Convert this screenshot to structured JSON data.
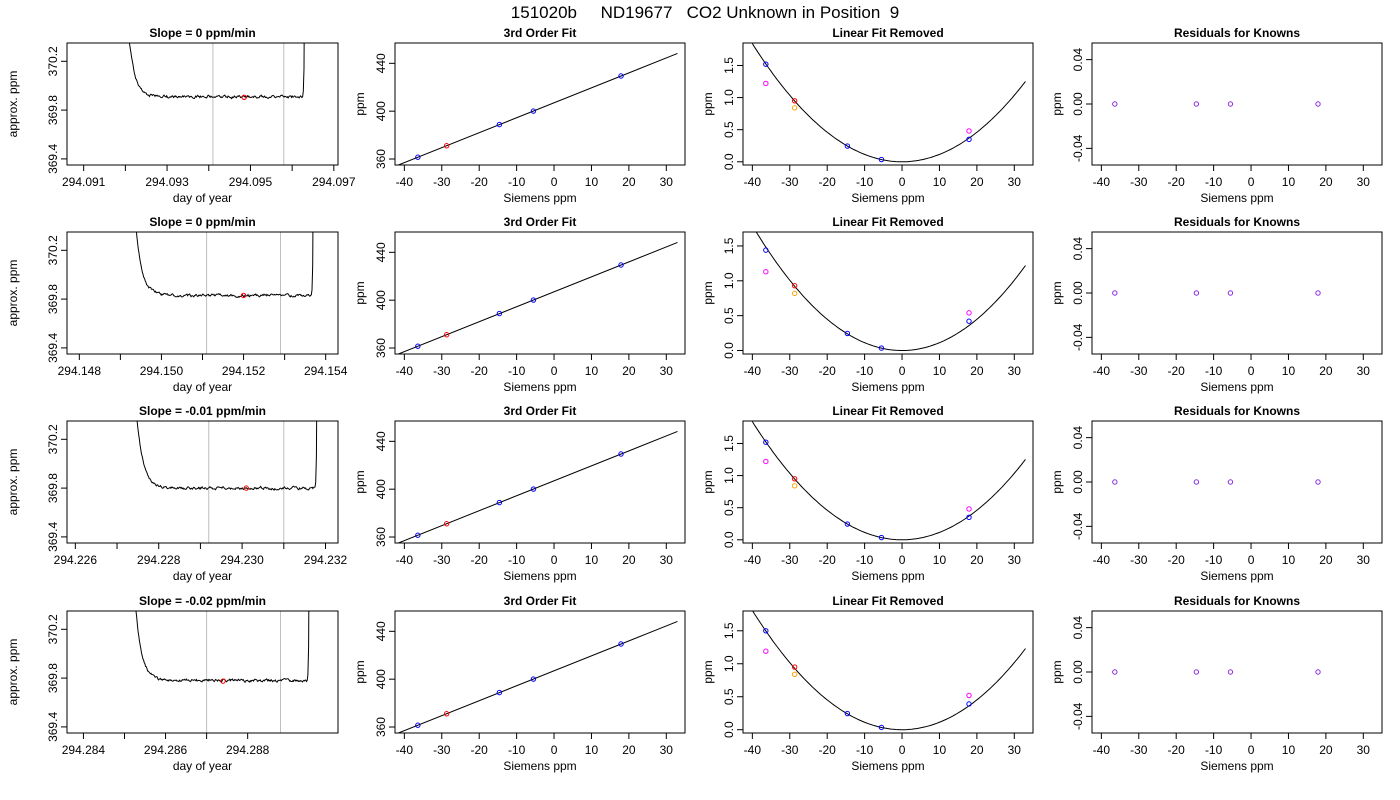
{
  "figure": {
    "title": "151020b     ND19677   CO2 Unknown in Position  9"
  },
  "colors": {
    "trace": "#000000",
    "window": "#bebebe",
    "mean_point": "#ff0000",
    "known": "#0000ff",
    "unknown_fit": "#ff0000",
    "unknown_linear": "#ffa500",
    "linear": "#ff00ff",
    "residual": "#8a2be2"
  },
  "chart_data": [
    {
      "type": "line",
      "row": 0,
      "col": 0,
      "title": "Slope =  0  ppm/min",
      "xlabel": "day of year",
      "ylabel": "approx. ppm",
      "xlim": [
        294.0906,
        294.0971
      ],
      "ylim": [
        369.35,
        370.35
      ],
      "xticks": [
        294.091,
        294.093,
        294.095,
        294.097
      ],
      "xtick_labels": [
        "294.091",
        "294.093",
        "294.095",
        "294.097"
      ],
      "yticks": [
        369.4,
        369.8,
        370.2
      ],
      "ytick_labels": [
        "369.4",
        "369.8",
        "370.2"
      ],
      "trace": {
        "x_start": 294.092,
        "x_end": 294.0963,
        "baseline": 369.91,
        "rise_start": 370.45,
        "rise_end": 370.45,
        "decay_minutes": 0.025,
        "noise": 0.012,
        "seed": 1
      },
      "windows": [
        294.0941,
        294.0958
      ],
      "mean_point": {
        "x": 294.09485,
        "y": 369.905
      }
    },
    {
      "type": "line",
      "row": 1,
      "col": 0,
      "title": "Slope =  0  ppm/min",
      "xlabel": "day of year",
      "ylabel": "approx. ppm",
      "xlim": [
        294.1477,
        294.1543
      ],
      "ylim": [
        369.35,
        370.35
      ],
      "xticks": [
        294.148,
        294.15,
        294.152,
        294.154
      ],
      "xtick_labels": [
        "294.148",
        "294.150",
        "294.152",
        "294.154"
      ],
      "yticks": [
        369.4,
        369.8,
        370.2
      ],
      "ytick_labels": [
        "369.4",
        "369.8",
        "370.2"
      ],
      "trace": {
        "x_start": 294.1493,
        "x_end": 294.1537,
        "baseline": 369.83,
        "rise_start": 370.45,
        "rise_end": 370.45,
        "decay_minutes": 0.025,
        "noise": 0.012,
        "seed": 2
      },
      "windows": [
        294.1511,
        294.1529
      ],
      "mean_point": {
        "x": 294.152,
        "y": 369.83
      }
    },
    {
      "type": "line",
      "row": 2,
      "col": 0,
      "title": "Slope =  -0.01  ppm/min",
      "xlabel": "day of year",
      "ylabel": "approx. ppm",
      "xlim": [
        294.2258,
        294.2323
      ],
      "ylim": [
        369.35,
        370.35
      ],
      "xticks": [
        294.226,
        294.228,
        294.23,
        294.232
      ],
      "xtick_labels": [
        "294.226",
        "294.228",
        "294.230",
        "294.232"
      ],
      "yticks": [
        369.4,
        369.8,
        370.2
      ],
      "ytick_labels": [
        "369.4",
        "369.8",
        "370.2"
      ],
      "trace": {
        "x_start": 294.2274,
        "x_end": 294.2318,
        "baseline": 369.8,
        "rise_start": 370.45,
        "rise_end": 370.45,
        "decay_minutes": 0.025,
        "noise": 0.012,
        "seed": 3
      },
      "windows": [
        294.2292,
        294.231
      ],
      "mean_point": {
        "x": 294.2301,
        "y": 369.8
      }
    },
    {
      "type": "line",
      "row": 3,
      "col": 0,
      "title": "Slope =  -0.02  ppm/min",
      "xlabel": "day of year",
      "ylabel": "approx. ppm",
      "xlim": [
        294.2836,
        294.2902
      ],
      "ylim": [
        369.35,
        370.35
      ],
      "xticks": [
        294.284,
        294.286,
        294.288
      ],
      "xtick_labels": [
        "294.284",
        "294.286",
        "294.288"
      ],
      "yticks": [
        369.4,
        369.8,
        370.2
      ],
      "ytick_labels": [
        "369.4",
        "369.8",
        "370.2"
      ],
      "trace": {
        "x_start": 294.2852,
        "x_end": 294.2895,
        "baseline": 369.78,
        "rise_start": 370.45,
        "rise_end": 370.45,
        "decay_minutes": 0.025,
        "noise": 0.012,
        "seed": 4
      },
      "windows": [
        294.287,
        294.2888
      ],
      "mean_point": {
        "x": 294.2874,
        "y": 369.775
      }
    },
    {
      "type": "scatter",
      "row": 0,
      "col": 1,
      "title": "3rd Order Fit",
      "xlabel": "Siemens ppm",
      "ylabel": "ppm",
      "xlim": [
        -42.5,
        35
      ],
      "ylim": [
        355,
        457
      ],
      "xticks": [
        -40,
        -30,
        -20,
        -10,
        0,
        10,
        20,
        30
      ],
      "yticks": [
        360,
        400,
        440
      ],
      "fit_line": {
        "slope": 1.25,
        "intercept": 407.0,
        "x_range": [
          -42,
          33
        ]
      },
      "known_points": [
        {
          "x": -36.4,
          "y": 361.5
        },
        {
          "x": -14.6,
          "y": 388.8
        },
        {
          "x": -5.5,
          "y": 400.1
        },
        {
          "x": 17.9,
          "y": 429.4
        }
      ],
      "unknown_point": {
        "x": -28.7,
        "y": 371.1
      }
    },
    {
      "type": "scatter",
      "row": 1,
      "col": 1,
      "title": "3rd Order Fit",
      "xlabel": "Siemens ppm",
      "ylabel": "ppm",
      "xlim": [
        -42.5,
        35
      ],
      "ylim": [
        355,
        457
      ],
      "xticks": [
        -40,
        -30,
        -20,
        -10,
        0,
        10,
        20,
        30
      ],
      "yticks": [
        360,
        400,
        440
      ],
      "fit_line": {
        "slope": 1.25,
        "intercept": 407.0,
        "x_range": [
          -42,
          33
        ]
      },
      "known_points": [
        {
          "x": -36.4,
          "y": 361.5
        },
        {
          "x": -14.6,
          "y": 388.8
        },
        {
          "x": -5.5,
          "y": 400.1
        },
        {
          "x": 17.9,
          "y": 429.4
        }
      ],
      "unknown_point": {
        "x": -28.7,
        "y": 371.1
      }
    },
    {
      "type": "scatter",
      "row": 2,
      "col": 1,
      "title": "3rd Order Fit",
      "xlabel": "Siemens ppm",
      "ylabel": "ppm",
      "xlim": [
        -42.5,
        35
      ],
      "ylim": [
        355,
        457
      ],
      "xticks": [
        -40,
        -30,
        -20,
        -10,
        0,
        10,
        20,
        30
      ],
      "yticks": [
        360,
        400,
        440
      ],
      "fit_line": {
        "slope": 1.25,
        "intercept": 407.0,
        "x_range": [
          -42,
          33
        ]
      },
      "known_points": [
        {
          "x": -36.4,
          "y": 361.5
        },
        {
          "x": -14.6,
          "y": 388.8
        },
        {
          "x": -5.5,
          "y": 400.1
        },
        {
          "x": 17.9,
          "y": 429.4
        }
      ],
      "unknown_point": {
        "x": -28.7,
        "y": 371.1
      }
    },
    {
      "type": "scatter",
      "row": 3,
      "col": 1,
      "title": "3rd Order Fit",
      "xlabel": "Siemens ppm",
      "ylabel": "ppm",
      "xlim": [
        -42.5,
        35
      ],
      "ylim": [
        355,
        457
      ],
      "xticks": [
        -40,
        -30,
        -20,
        -10,
        0,
        10,
        20,
        30
      ],
      "yticks": [
        360,
        400,
        440
      ],
      "fit_line": {
        "slope": 1.25,
        "intercept": 407.0,
        "x_range": [
          -42,
          33
        ]
      },
      "known_points": [
        {
          "x": -36.4,
          "y": 361.5
        },
        {
          "x": -14.6,
          "y": 388.8
        },
        {
          "x": -5.5,
          "y": 400.1
        },
        {
          "x": 17.9,
          "y": 429.4
        }
      ],
      "unknown_point": {
        "x": -28.7,
        "y": 371.1
      }
    },
    {
      "type": "scatter",
      "row": 0,
      "col": 2,
      "title": "Linear Fit Removed",
      "xlabel": "Siemens ppm",
      "ylabel": "ppm",
      "xlim": [
        -42.5,
        35
      ],
      "ylim": [
        -0.05,
        1.85
      ],
      "xticks": [
        -40,
        -30,
        -20,
        -10,
        0,
        10,
        20,
        30
      ],
      "yticks": [
        0.0,
        0.5,
        1.0,
        1.5
      ],
      "ytick_labels": [
        "0.0",
        "0.5",
        "1.0",
        "1.5"
      ],
      "curve": {
        "a": 0.00115,
        "b": 0,
        "c": 0,
        "x_range": [
          -40,
          33
        ]
      },
      "known_points": [
        {
          "x": -36.4,
          "y": 1.52
        },
        {
          "x": -14.6,
          "y": 0.245
        },
        {
          "x": -5.5,
          "y": 0.035
        },
        {
          "x": 17.9,
          "y": 0.35
        }
      ],
      "linear_points": [
        {
          "x": -36.4,
          "y": 1.22
        },
        {
          "x": 17.9,
          "y": 0.48
        }
      ],
      "unknown_fit_point": {
        "x": -28.7,
        "y": 0.95
      },
      "unknown_linear_point": {
        "x": -28.7,
        "y": 0.84
      }
    },
    {
      "type": "scatter",
      "row": 1,
      "col": 2,
      "title": "Linear Fit Removed",
      "xlabel": "Siemens ppm",
      "ylabel": "ppm",
      "xlim": [
        -42.5,
        35
      ],
      "ylim": [
        -0.05,
        1.7
      ],
      "xticks": [
        -40,
        -30,
        -20,
        -10,
        0,
        10,
        20,
        30
      ],
      "yticks": [
        0.0,
        0.5,
        1.0,
        1.5
      ],
      "ytick_labels": [
        "0.0",
        "0.5",
        "1.0",
        "1.5"
      ],
      "curve": {
        "a": 0.00112,
        "b": 0,
        "c": 0,
        "x_range": [
          -40,
          33
        ]
      },
      "known_points": [
        {
          "x": -36.4,
          "y": 1.44
        },
        {
          "x": -14.6,
          "y": 0.245
        },
        {
          "x": -5.5,
          "y": 0.035
        },
        {
          "x": 17.9,
          "y": 0.42
        }
      ],
      "linear_points": [
        {
          "x": -36.4,
          "y": 1.13
        },
        {
          "x": 17.9,
          "y": 0.54
        }
      ],
      "unknown_fit_point": {
        "x": -28.7,
        "y": 0.93
      },
      "unknown_linear_point": {
        "x": -28.7,
        "y": 0.82
      }
    },
    {
      "type": "scatter",
      "row": 2,
      "col": 2,
      "title": "Linear Fit Removed",
      "xlabel": "Siemens ppm",
      "ylabel": "ppm",
      "xlim": [
        -42.5,
        35
      ],
      "ylim": [
        -0.05,
        1.85
      ],
      "xticks": [
        -40,
        -30,
        -20,
        -10,
        0,
        10,
        20,
        30
      ],
      "yticks": [
        0.0,
        0.5,
        1.0,
        1.5
      ],
      "ytick_labels": [
        "0.0",
        "0.5",
        "1.0",
        "1.5"
      ],
      "curve": {
        "a": 0.00115,
        "b": 0,
        "c": 0,
        "x_range": [
          -40,
          33
        ]
      },
      "known_points": [
        {
          "x": -36.4,
          "y": 1.52
        },
        {
          "x": -14.6,
          "y": 0.245
        },
        {
          "x": -5.5,
          "y": 0.035
        },
        {
          "x": 17.9,
          "y": 0.35
        }
      ],
      "linear_points": [
        {
          "x": -36.4,
          "y": 1.22
        },
        {
          "x": 17.9,
          "y": 0.48
        }
      ],
      "unknown_fit_point": {
        "x": -28.7,
        "y": 0.95
      },
      "unknown_linear_point": {
        "x": -28.7,
        "y": 0.84
      }
    },
    {
      "type": "scatter",
      "row": 3,
      "col": 2,
      "title": "Linear Fit Removed",
      "xlabel": "Siemens ppm",
      "ylabel": "ppm",
      "xlim": [
        -42.5,
        35
      ],
      "ylim": [
        -0.05,
        1.8
      ],
      "xticks": [
        -40,
        -30,
        -20,
        -10,
        0,
        10,
        20,
        30
      ],
      "yticks": [
        0.0,
        0.5,
        1.0,
        1.5
      ],
      "ytick_labels": [
        "0.0",
        "0.5",
        "1.0",
        "1.5"
      ],
      "curve": {
        "a": 0.00113,
        "b": 0,
        "c": 0,
        "x_range": [
          -40,
          33
        ]
      },
      "known_points": [
        {
          "x": -36.4,
          "y": 1.5
        },
        {
          "x": -14.6,
          "y": 0.245
        },
        {
          "x": -5.5,
          "y": 0.035
        },
        {
          "x": 17.9,
          "y": 0.39
        }
      ],
      "linear_points": [
        {
          "x": -36.4,
          "y": 1.19
        },
        {
          "x": 17.9,
          "y": 0.52
        }
      ],
      "unknown_fit_point": {
        "x": -28.7,
        "y": 0.95
      },
      "unknown_linear_point": {
        "x": -28.7,
        "y": 0.84
      }
    },
    {
      "type": "scatter",
      "row": 0,
      "col": 3,
      "title": "Residuals for Knowns",
      "xlabel": "Siemens ppm",
      "ylabel": "ppm",
      "xlim": [
        -42.5,
        35
      ],
      "ylim": [
        -0.055,
        0.055
      ],
      "xticks": [
        -40,
        -30,
        -20,
        -10,
        0,
        10,
        20,
        30
      ],
      "yticks": [
        -0.04,
        0.0,
        0.04
      ],
      "ytick_labels": [
        "-0.04",
        "0.00",
        "0.04"
      ],
      "residual_points": [
        {
          "x": -36.4,
          "y": 0
        },
        {
          "x": -14.6,
          "y": 0
        },
        {
          "x": -5.5,
          "y": 0
        },
        {
          "x": 17.9,
          "y": 0
        }
      ]
    },
    {
      "type": "scatter",
      "row": 1,
      "col": 3,
      "title": "Residuals for Knowns",
      "xlabel": "Siemens ppm",
      "ylabel": "ppm",
      "xlim": [
        -42.5,
        35
      ],
      "ylim": [
        -0.055,
        0.055
      ],
      "xticks": [
        -40,
        -30,
        -20,
        -10,
        0,
        10,
        20,
        30
      ],
      "yticks": [
        -0.04,
        0.0,
        0.04
      ],
      "ytick_labels": [
        "-0.04",
        "0.00",
        "0.04"
      ],
      "residual_points": [
        {
          "x": -36.4,
          "y": 0
        },
        {
          "x": -14.6,
          "y": 0
        },
        {
          "x": -5.5,
          "y": 0
        },
        {
          "x": 17.9,
          "y": 0
        }
      ]
    },
    {
      "type": "scatter",
      "row": 2,
      "col": 3,
      "title": "Residuals for Knowns",
      "xlabel": "Siemens ppm",
      "ylabel": "ppm",
      "xlim": [
        -42.5,
        35
      ],
      "ylim": [
        -0.055,
        0.055
      ],
      "xticks": [
        -40,
        -30,
        -20,
        -10,
        0,
        10,
        20,
        30
      ],
      "yticks": [
        -0.04,
        0.0,
        0.04
      ],
      "ytick_labels": [
        "-0.04",
        "0.00",
        "0.04"
      ],
      "residual_points": [
        {
          "x": -36.4,
          "y": 0
        },
        {
          "x": -14.6,
          "y": 0
        },
        {
          "x": -5.5,
          "y": 0
        },
        {
          "x": 17.9,
          "y": 0
        }
      ]
    },
    {
      "type": "scatter",
      "row": 3,
      "col": 3,
      "title": "Residuals for Knowns",
      "xlabel": "Siemens ppm",
      "ylabel": "ppm",
      "xlim": [
        -42.5,
        35
      ],
      "ylim": [
        -0.055,
        0.055
      ],
      "xticks": [
        -40,
        -30,
        -20,
        -10,
        0,
        10,
        20,
        30
      ],
      "yticks": [
        -0.04,
        0.0,
        0.04
      ],
      "ytick_labels": [
        "-0.04",
        "0.00",
        "0.04"
      ],
      "residual_points": [
        {
          "x": -36.4,
          "y": 0
        },
        {
          "x": -14.6,
          "y": 0
        },
        {
          "x": -5.5,
          "y": 0
        },
        {
          "x": 17.9,
          "y": 0
        }
      ]
    }
  ]
}
